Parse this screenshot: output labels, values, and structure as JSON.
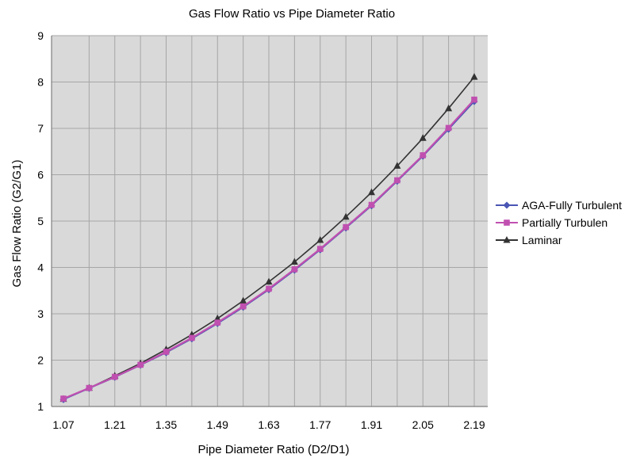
{
  "chart_data": {
    "type": "line",
    "title": "Gas Flow Ratio vs Pipe Diameter Ratio",
    "xlabel": "Pipe Diameter Ratio (D2/D1)",
    "ylabel": "Gas Flow Ratio (G2/G1)",
    "xlim": [
      1.07,
      2.19
    ],
    "ylim": [
      1,
      9
    ],
    "x_ticks": [
      "1.07",
      "1.21",
      "1.35",
      "1.49",
      "1.63",
      "1.77",
      "1.91",
      "2.05",
      "2.19"
    ],
    "y_ticks": [
      "1",
      "2",
      "3",
      "4",
      "5",
      "6",
      "7",
      "8",
      "9"
    ],
    "grid": true,
    "legend": "right",
    "x": [
      1.07,
      1.14,
      1.21,
      1.28,
      1.35,
      1.42,
      1.49,
      1.56,
      1.63,
      1.7,
      1.77,
      1.84,
      1.91,
      1.98,
      2.05,
      2.12,
      2.19
    ],
    "series": [
      {
        "name": "AGA-Fully Turbulent",
        "color": "#4a56b4",
        "marker": "diamond",
        "values": [
          1.15,
          1.39,
          1.63,
          1.89,
          2.16,
          2.46,
          2.79,
          3.14,
          3.52,
          3.94,
          4.38,
          4.85,
          5.33,
          5.86,
          6.4,
          6.98,
          7.58
        ]
      },
      {
        "name": "Partially Turbulen",
        "color": "#c050b0",
        "marker": "square",
        "values": [
          1.17,
          1.4,
          1.64,
          1.9,
          2.18,
          2.48,
          2.81,
          3.16,
          3.54,
          3.96,
          4.4,
          4.87,
          5.35,
          5.88,
          6.42,
          7.01,
          7.62
        ]
      },
      {
        "name": "Laminar",
        "color": "#333333",
        "marker": "triangle",
        "values": [
          1.16,
          1.4,
          1.66,
          1.93,
          2.23,
          2.55,
          2.9,
          3.28,
          3.69,
          4.12,
          4.59,
          5.09,
          5.62,
          6.19,
          6.79,
          7.43,
          8.11
        ]
      }
    ]
  }
}
